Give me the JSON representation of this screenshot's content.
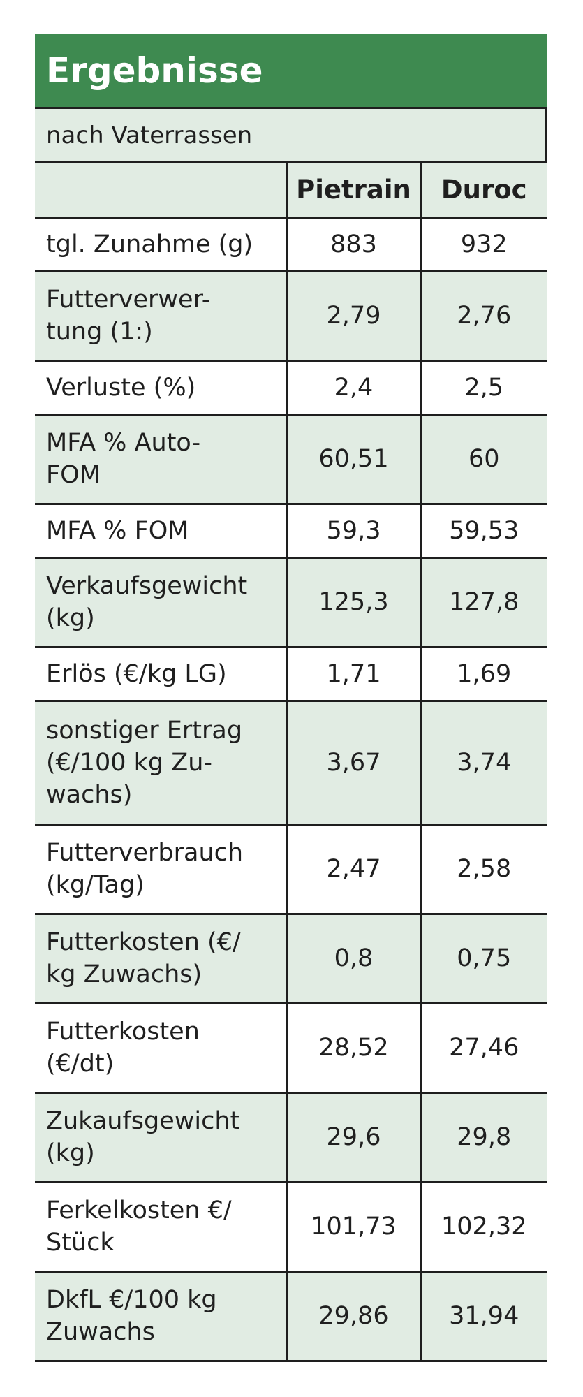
{
  "table": {
    "title": "Ergebnisse",
    "subtitle": "nach Vaterrassen",
    "columns": [
      "",
      "Pietrain",
      "Duroc"
    ],
    "rows": [
      {
        "label_lines": [
          "tgl. Zunahme (g)"
        ],
        "pietrain": "883",
        "duroc": "932"
      },
      {
        "label_lines": [
          "Futterverwer-",
          "tung (1:)"
        ],
        "pietrain": "2,79",
        "duroc": "2,76"
      },
      {
        "label_lines": [
          "Verluste (%)"
        ],
        "pietrain": "2,4",
        "duroc": "2,5"
      },
      {
        "label_lines": [
          "MFA % Auto-",
          "FOM"
        ],
        "pietrain": "60,51",
        "duroc": "60"
      },
      {
        "label_lines": [
          "MFA % FOM"
        ],
        "pietrain": "59,3",
        "duroc": "59,53"
      },
      {
        "label_lines": [
          "Verkaufsgewicht",
          "(kg)"
        ],
        "pietrain": "125,3",
        "duroc": "127,8"
      },
      {
        "label_lines": [
          "Erlös (€/kg LG)"
        ],
        "pietrain": "1,71",
        "duroc": "1,69"
      },
      {
        "label_lines": [
          "sonstiger Ertrag",
          "(€/100 kg Zu-",
          "wachs)"
        ],
        "pietrain": "3,67",
        "duroc": "3,74"
      },
      {
        "label_lines": [
          "Futterverbrauch",
          "(kg/Tag)"
        ],
        "pietrain": "2,47",
        "duroc": "2,58"
      },
      {
        "label_lines": [
          "Futterkosten (€/",
          "kg Zuwachs)"
        ],
        "pietrain": "0,8",
        "duroc": "0,75"
      },
      {
        "label_lines": [
          "Futterkosten",
          "(€/dt)"
        ],
        "pietrain": "28,52",
        "duroc": "27,46"
      },
      {
        "label_lines": [
          "Zukaufsgewicht",
          "(kg)"
        ],
        "pietrain": "29,6",
        "duroc": "29,8"
      },
      {
        "label_lines": [
          "Ferkelkosten €/",
          "Stück"
        ],
        "pietrain": "101,73",
        "duroc": "102,32"
      },
      {
        "label_lines": [
          "DkfL €/100 kg",
          "Zuwachs"
        ],
        "pietrain": "29,86",
        "duroc": "31,94"
      }
    ]
  },
  "colors": {
    "title_bg": "#3e8a50",
    "shade_bg": "#e1ece3",
    "border": "#1e1e1e"
  }
}
